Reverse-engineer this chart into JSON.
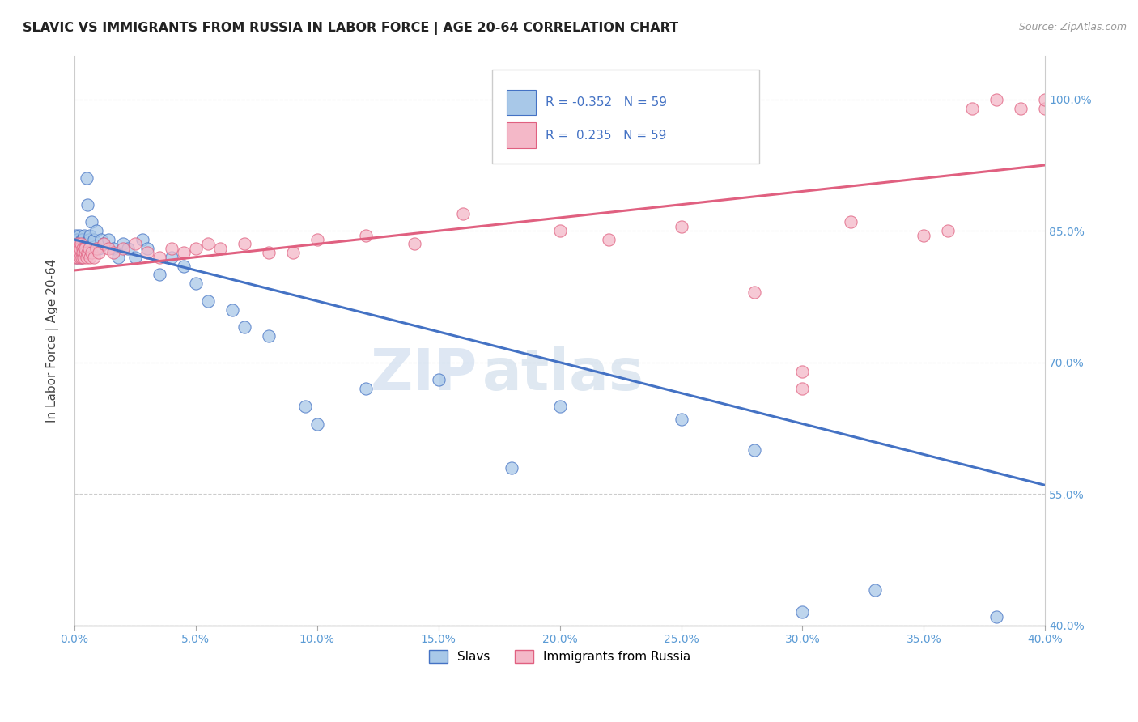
{
  "title": "SLAVIC VS IMMIGRANTS FROM RUSSIA IN LABOR FORCE | AGE 20-64 CORRELATION CHART",
  "source": "Source: ZipAtlas.com",
  "ylabel": "In Labor Force | Age 20-64",
  "yticks": [
    40.0,
    55.0,
    70.0,
    85.0,
    100.0
  ],
  "xticks": [
    0.0,
    5.0,
    10.0,
    15.0,
    20.0,
    25.0,
    30.0,
    35.0,
    40.0
  ],
  "xlim": [
    0.0,
    40.0
  ],
  "ylim": [
    40.0,
    105.0
  ],
  "R_slavs": -0.352,
  "R_russia": 0.235,
  "N_slavs": 59,
  "N_russia": 59,
  "color_slavs": "#a8c8e8",
  "color_russia": "#f4b8c8",
  "color_slavs_line": "#4472c4",
  "color_russia_line": "#e06080",
  "watermark_zip": "ZIP",
  "watermark_atlas": "atlas",
  "slavs_line_x0": 0.0,
  "slavs_line_y0": 84.0,
  "slavs_line_x1": 40.0,
  "slavs_line_y1": 56.0,
  "russia_line_x0": 0.0,
  "russia_line_y0": 80.5,
  "russia_line_x1": 40.0,
  "russia_line_y1": 92.5,
  "slavs_x": [
    0.05,
    0.08,
    0.1,
    0.1,
    0.12,
    0.12,
    0.15,
    0.15,
    0.18,
    0.2,
    0.2,
    0.22,
    0.25,
    0.28,
    0.3,
    0.3,
    0.32,
    0.35,
    0.38,
    0.4,
    0.42,
    0.45,
    0.5,
    0.55,
    0.6,
    0.65,
    0.7,
    0.8,
    0.9,
    1.0,
    1.1,
    1.2,
    1.4,
    1.6,
    1.8,
    2.0,
    2.2,
    2.5,
    2.8,
    3.0,
    3.5,
    4.0,
    4.5,
    5.0,
    5.5,
    6.5,
    7.0,
    8.0,
    9.5,
    10.0,
    12.0,
    15.0,
    18.0,
    20.0,
    25.0,
    28.0,
    30.0,
    33.0,
    38.0
  ],
  "slavs_y": [
    83.0,
    84.5,
    82.0,
    84.0,
    83.5,
    82.5,
    83.0,
    84.0,
    82.5,
    83.0,
    84.5,
    83.0,
    83.5,
    82.0,
    84.0,
    83.0,
    82.5,
    84.0,
    83.5,
    84.5,
    83.0,
    83.5,
    91.0,
    88.0,
    84.0,
    84.5,
    86.0,
    84.0,
    85.0,
    83.0,
    84.0,
    83.5,
    84.0,
    83.0,
    82.0,
    83.5,
    83.0,
    82.0,
    84.0,
    83.0,
    80.0,
    82.0,
    81.0,
    79.0,
    77.0,
    76.0,
    74.0,
    73.0,
    65.0,
    63.0,
    67.0,
    68.0,
    58.0,
    65.0,
    63.5,
    60.0,
    41.5,
    44.0,
    41.0
  ],
  "russia_x": [
    0.05,
    0.08,
    0.1,
    0.12,
    0.15,
    0.15,
    0.18,
    0.2,
    0.22,
    0.25,
    0.28,
    0.3,
    0.32,
    0.35,
    0.38,
    0.4,
    0.42,
    0.45,
    0.5,
    0.55,
    0.6,
    0.65,
    0.7,
    0.8,
    0.9,
    1.0,
    1.2,
    1.4,
    1.6,
    2.0,
    2.5,
    3.0,
    3.5,
    4.0,
    4.5,
    5.0,
    5.5,
    6.0,
    7.0,
    8.0,
    9.0,
    10.0,
    12.0,
    14.0,
    16.0,
    20.0,
    22.0,
    25.0,
    28.0,
    30.0,
    30.0,
    32.0,
    35.0,
    36.0,
    37.0,
    38.0,
    39.0,
    40.0,
    40.0
  ],
  "russia_y": [
    82.0,
    83.0,
    82.5,
    83.0,
    82.0,
    83.5,
    83.0,
    82.5,
    83.0,
    82.0,
    83.5,
    82.0,
    83.0,
    82.5,
    82.0,
    83.0,
    82.5,
    83.0,
    82.0,
    82.5,
    83.0,
    82.0,
    82.5,
    82.0,
    83.0,
    82.5,
    83.5,
    83.0,
    82.5,
    83.0,
    83.5,
    82.5,
    82.0,
    83.0,
    82.5,
    83.0,
    83.5,
    83.0,
    83.5,
    82.5,
    82.5,
    84.0,
    84.5,
    83.5,
    87.0,
    85.0,
    84.0,
    85.5,
    78.0,
    67.0,
    69.0,
    86.0,
    84.5,
    85.0,
    99.0,
    100.0,
    99.0,
    99.0,
    100.0
  ]
}
